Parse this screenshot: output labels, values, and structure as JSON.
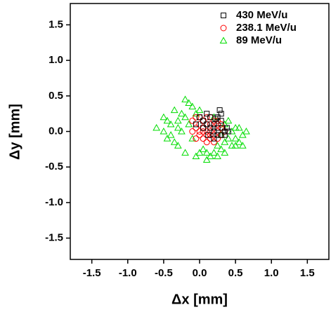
{
  "chart_data": {
    "type": "scatter",
    "xlabel": "Δx [mm]",
    "ylabel": "Δy [mm]",
    "xlim": [
      -1.8,
      1.8
    ],
    "ylim": [
      -1.8,
      1.8
    ],
    "xticks": [
      -1.5,
      {
        "value": -1,
        "label": "-1.0"
      },
      -0.5,
      {
        "value": 0,
        "label": "0.0"
      },
      0.5,
      {
        "value": 1,
        "label": "1.0"
      },
      1.5
    ],
    "yticks": [
      -1.5,
      {
        "value": -1,
        "label": "-1.0"
      },
      -0.5,
      {
        "value": 0,
        "label": "0.0"
      },
      0.5,
      {
        "value": 1,
        "label": "1.0"
      },
      1.5
    ],
    "legend": "upper right",
    "series": [
      {
        "name": "430 MeV/u",
        "color": "#000000",
        "marker": "square",
        "x": [
          0.0,
          0.05,
          0.1,
          0.15,
          0.2,
          0.25,
          0.3,
          0.35,
          0.3,
          0.25,
          0.2,
          0.15,
          0.1,
          0.3,
          0.35,
          0.4,
          0.28,
          0.2,
          0.05,
          0.32,
          0.25,
          -0.05,
          0.38,
          0.22,
          0.12
        ],
        "y": [
          0.2,
          0.15,
          0.25,
          0.2,
          0.1,
          0.05,
          -0.05,
          0.0,
          0.25,
          0.2,
          0.0,
          0.05,
          0.1,
          0.15,
          -0.05,
          0.0,
          0.3,
          -0.1,
          0.05,
          0.05,
          -0.05,
          0.1,
          0.05,
          0.18,
          -0.05
        ]
      },
      {
        "name": "238.1 MeV/u",
        "color": "#ff0000",
        "marker": "circle",
        "x": [
          -0.1,
          -0.05,
          0.0,
          0.05,
          0.1,
          0.15,
          0.2,
          0.25,
          0.3,
          0.0,
          0.05,
          0.1,
          0.15,
          0.2,
          0.25,
          -0.05,
          0.1,
          0.15,
          0.2,
          0.05,
          0.0,
          0.3,
          0.25,
          -0.1,
          0.15,
          0.1,
          0.05,
          0.2,
          0.35,
          0.1,
          0.15,
          0.0,
          -0.05,
          0.25,
          0.3
        ],
        "y": [
          0.15,
          0.05,
          -0.05,
          0.15,
          0.0,
          -0.1,
          0.05,
          0.1,
          -0.05,
          0.1,
          -0.1,
          0.2,
          0.1,
          -0.05,
          -0.1,
          -0.1,
          -0.15,
          0.2,
          0.15,
          0.0,
          0.2,
          0.05,
          0.0,
          0.0,
          0.0,
          0.1,
          0.05,
          -0.15,
          0.0,
          -0.05,
          -0.05,
          0.0,
          0.2,
          0.15,
          0.1
        ]
      },
      {
        "name": "89 MeV/u",
        "color": "#00dd00",
        "marker": "triangle",
        "x": [
          -0.6,
          -0.5,
          -0.45,
          -0.4,
          -0.35,
          -0.3,
          -0.25,
          -0.2,
          -0.15,
          -0.2,
          -0.1,
          -0.05,
          0.0,
          0.05,
          0.1,
          0.15,
          0.2,
          0.25,
          0.3,
          0.35,
          0.4,
          0.45,
          0.5,
          0.55,
          0.6,
          0.65,
          0.5,
          0.55,
          0.6,
          -0.4,
          -0.3,
          -0.25,
          -0.35,
          -0.15,
          -0.1,
          0.4,
          0.35,
          0.3,
          -0.5,
          -0.45,
          0.0,
          0.1,
          -0.2,
          0.45,
          -0.3,
          0.2,
          0.25,
          -0.05,
          0.5,
          0.35
        ],
        "y": [
          0.05,
          0.2,
          -0.1,
          0.1,
          0.3,
          -0.2,
          0.0,
          0.45,
          0.4,
          -0.3,
          0.35,
          -0.35,
          0.3,
          -0.25,
          -0.4,
          -0.35,
          -0.3,
          -0.2,
          -0.25,
          -0.15,
          -0.1,
          0.0,
          -0.1,
          0.05,
          -0.05,
          0.0,
          -0.2,
          -0.15,
          -0.2,
          -0.05,
          0.15,
          0.25,
          -0.15,
          0.1,
          -0.1,
          0.15,
          0.1,
          -0.05,
          0.0,
          0.15,
          -0.3,
          -0.3,
          0.2,
          -0.2,
          0.05,
          0.2,
          -0.35,
          0.25,
          0.05,
          -0.3
        ]
      }
    ]
  }
}
